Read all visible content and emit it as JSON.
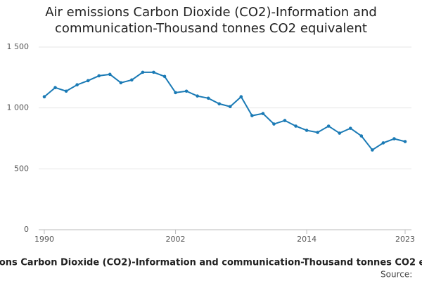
{
  "chart_data": {
    "type": "line",
    "title": "Air emissions Carbon Dioxide (CO2)-Information and communication-Thousand tonnes CO2 equivalent",
    "source": "Source:",
    "x": [
      1990,
      1991,
      1992,
      1993,
      1994,
      1995,
      1996,
      1997,
      1998,
      1999,
      2000,
      2001,
      2002,
      2003,
      2004,
      2005,
      2006,
      2007,
      2008,
      2009,
      2010,
      2011,
      2012,
      2013,
      2014,
      2015,
      2016,
      2017,
      2018,
      2019,
      2020,
      2021,
      2022,
      2023
    ],
    "series": [
      {
        "color": "#1a7ab5",
        "values": [
          1092,
          1167,
          1138,
          1190,
          1224,
          1264,
          1276,
          1207,
          1230,
          1293,
          1293,
          1259,
          1126,
          1138,
          1098,
          1080,
          1034,
          1011,
          1092,
          937,
          954,
          868,
          897,
          851,
          816,
          799,
          851,
          793,
          833,
          770,
          655,
          713,
          747,
          724
        ]
      }
    ],
    "xlim": [
      1990,
      2023
    ],
    "xticks": [
      1990,
      2002,
      2014,
      2023
    ],
    "ylim": [
      0,
      1500
    ],
    "yticks": [
      0,
      500,
      {
        "value": 1000,
        "label": "1 000"
      },
      {
        "value": 1500,
        "label": "1 500"
      }
    ],
    "grid": true
  }
}
